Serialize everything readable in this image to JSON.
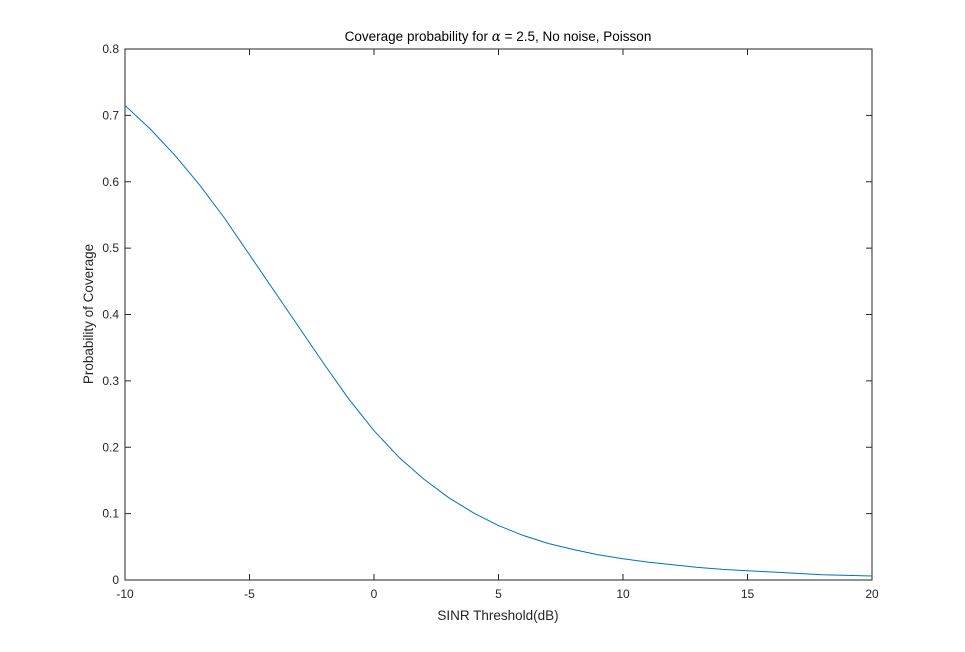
{
  "chart_data": {
    "type": "line",
    "title_parts": {
      "prefix": "Coverage probability for ",
      "symbol": "α",
      "suffix": " = 2.5, No noise, Poisson"
    },
    "xlabel": "SINR Threshold(dB)",
    "ylabel": "Probability of Coverage",
    "xlim": [
      -10,
      20
    ],
    "ylim": [
      0,
      0.8
    ],
    "xticks": [
      -10,
      -5,
      0,
      5,
      10,
      15,
      20
    ],
    "xtick_labels": [
      "-10",
      "-5",
      "0",
      "5",
      "10",
      "15",
      "20"
    ],
    "yticks": [
      0,
      0.1,
      0.2,
      0.3,
      0.4,
      0.5,
      0.6,
      0.7,
      0.8
    ],
    "ytick_labels": [
      "0",
      "0.1",
      "0.2",
      "0.3",
      "0.4",
      "0.5",
      "0.6",
      "0.7",
      "0.8"
    ],
    "grid": false,
    "line_color": "#0072bd",
    "series": [
      {
        "x": [
          -10,
          -9,
          -8,
          -7,
          -6,
          -5,
          -4,
          -3,
          -2,
          -1,
          0,
          1,
          2,
          3,
          4,
          5,
          6,
          7,
          8,
          9,
          10,
          11,
          12,
          13,
          14,
          15,
          16,
          17,
          18,
          19,
          20
        ],
        "values": [
          0.715,
          0.68,
          0.64,
          0.595,
          0.545,
          0.49,
          0.435,
          0.38,
          0.325,
          0.272,
          0.225,
          0.185,
          0.152,
          0.124,
          0.101,
          0.082,
          0.067,
          0.055,
          0.046,
          0.038,
          0.032,
          0.027,
          0.023,
          0.019,
          0.016,
          0.014,
          0.012,
          0.01,
          0.008,
          0.007,
          0.006
        ]
      }
    ]
  }
}
